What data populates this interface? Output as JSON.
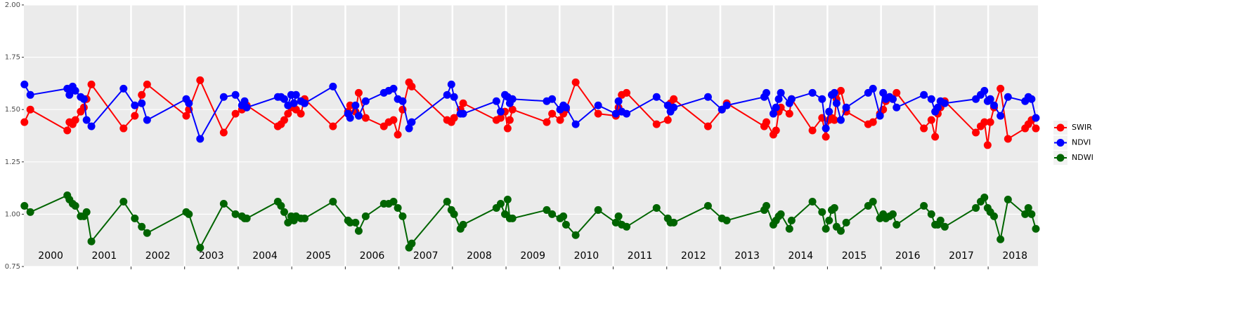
{
  "chart_data": {
    "type": "line",
    "x": [
      2000.01,
      2000.12,
      2000.81,
      2000.85,
      2000.91,
      2000.96,
      2001.06,
      2001.12,
      2001.17,
      2001.26,
      2001.86,
      2002.07,
      2002.2,
      2002.3,
      2003.03,
      2003.08,
      2003.29,
      2003.73,
      2003.95,
      2004.07,
      2004.12,
      2004.16,
      2004.74,
      2004.8,
      2004.86,
      2004.93,
      2004.99,
      2005.04,
      2005.08,
      2005.17,
      2005.24,
      2005.77,
      2006.05,
      2006.09,
      2006.19,
      2006.25,
      2006.38,
      2006.72,
      2006.81,
      2006.9,
      2006.98,
      2007.07,
      2007.19,
      2007.24,
      2007.9,
      2007.98,
      2008.03,
      2008.15,
      2008.2,
      2008.82,
      2008.9,
      2008.98,
      2009.03,
      2009.07,
      2009.12,
      2009.76,
      2009.86,
      2010.01,
      2010.07,
      2010.12,
      2010.3,
      2010.72,
      2011.05,
      2011.1,
      2011.16,
      2011.25,
      2011.81,
      2012.02,
      2012.07,
      2012.13,
      2012.77,
      2013.03,
      2013.12,
      2013.82,
      2013.86,
      2013.99,
      2014.04,
      2014.09,
      2014.13,
      2014.29,
      2014.33,
      2014.72,
      2014.9,
      2014.97,
      2015.03,
      2015.08,
      2015.13,
      2015.17,
      2015.25,
      2015.35,
      2015.76,
      2015.85,
      2015.98,
      2016.04,
      2016.09,
      2016.16,
      2016.22,
      2016.29,
      2016.8,
      2016.94,
      2017.01,
      2017.06,
      2017.11,
      2017.19,
      2017.77,
      2017.86,
      2017.93,
      2017.99,
      2018.04,
      2018.11,
      2018.23,
      2018.37,
      2018.69,
      2018.75,
      2018.81,
      2018.89
    ],
    "series": [
      {
        "name": "SWIR",
        "color": "#ff0000",
        "values": [
          1.44,
          1.5,
          1.4,
          1.44,
          1.43,
          1.45,
          1.49,
          1.51,
          1.55,
          1.62,
          1.41,
          1.47,
          1.57,
          1.62,
          1.47,
          1.5,
          1.64,
          1.39,
          1.48,
          1.5,
          1.53,
          1.52,
          1.42,
          1.43,
          1.45,
          1.48,
          1.51,
          1.53,
          1.5,
          1.48,
          1.55,
          1.42,
          1.49,
          1.52,
          1.49,
          1.58,
          1.46,
          1.42,
          1.44,
          1.45,
          1.38,
          1.5,
          1.63,
          1.61,
          1.45,
          1.44,
          1.46,
          1.5,
          1.53,
          1.45,
          1.46,
          1.49,
          1.41,
          1.45,
          1.5,
          1.44,
          1.48,
          1.45,
          1.48,
          1.5,
          1.63,
          1.48,
          1.47,
          1.51,
          1.57,
          1.58,
          1.43,
          1.45,
          1.53,
          1.55,
          1.42,
          1.5,
          1.53,
          1.42,
          1.44,
          1.38,
          1.4,
          1.49,
          1.51,
          1.48,
          1.55,
          1.4,
          1.46,
          1.37,
          1.45,
          1.46,
          1.45,
          1.55,
          1.59,
          1.49,
          1.43,
          1.44,
          1.48,
          1.5,
          1.54,
          1.56,
          1.55,
          1.58,
          1.41,
          1.45,
          1.37,
          1.48,
          1.51,
          1.54,
          1.39,
          1.42,
          1.44,
          1.33,
          1.44,
          1.51,
          1.6,
          1.36,
          1.41,
          1.43,
          1.45,
          1.41
        ]
      },
      {
        "name": "NDVI",
        "color": "#0000ff",
        "values": [
          1.62,
          1.57,
          1.6,
          1.57,
          1.61,
          1.59,
          1.56,
          1.55,
          1.45,
          1.42,
          1.6,
          1.52,
          1.53,
          1.45,
          1.55,
          1.53,
          1.36,
          1.56,
          1.57,
          1.52,
          1.54,
          1.51,
          1.56,
          1.56,
          1.55,
          1.52,
          1.57,
          1.53,
          1.57,
          1.54,
          1.53,
          1.61,
          1.48,
          1.46,
          1.52,
          1.47,
          1.54,
          1.58,
          1.59,
          1.6,
          1.55,
          1.54,
          1.41,
          1.44,
          1.57,
          1.62,
          1.56,
          1.48,
          1.48,
          1.54,
          1.49,
          1.57,
          1.56,
          1.53,
          1.55,
          1.54,
          1.55,
          1.5,
          1.52,
          1.51,
          1.43,
          1.52,
          1.48,
          1.54,
          1.49,
          1.48,
          1.56,
          1.52,
          1.49,
          1.51,
          1.56,
          1.5,
          1.52,
          1.56,
          1.58,
          1.48,
          1.51,
          1.55,
          1.58,
          1.53,
          1.55,
          1.58,
          1.55,
          1.41,
          1.49,
          1.57,
          1.58,
          1.53,
          1.45,
          1.51,
          1.58,
          1.6,
          1.47,
          1.58,
          1.55,
          1.56,
          1.55,
          1.51,
          1.57,
          1.55,
          1.49,
          1.51,
          1.54,
          1.53,
          1.55,
          1.57,
          1.59,
          1.54,
          1.55,
          1.52,
          1.47,
          1.56,
          1.54,
          1.56,
          1.55,
          1.46
        ]
      },
      {
        "name": "NDWI",
        "color": "#006400",
        "values": [
          1.04,
          1.01,
          1.09,
          1.07,
          1.05,
          1.04,
          0.99,
          0.99,
          1.01,
          0.87,
          1.06,
          0.98,
          0.94,
          0.91,
          1.01,
          1.0,
          0.84,
          1.05,
          1.0,
          0.99,
          0.98,
          0.98,
          1.06,
          1.04,
          1.01,
          0.96,
          0.99,
          0.97,
          0.99,
          0.98,
          0.98,
          1.06,
          0.97,
          0.96,
          0.96,
          0.92,
          0.99,
          1.05,
          1.05,
          1.06,
          1.03,
          0.99,
          0.84,
          0.86,
          1.06,
          1.02,
          1.0,
          0.93,
          0.95,
          1.03,
          1.05,
          1.0,
          1.07,
          0.98,
          0.98,
          1.02,
          1.0,
          0.98,
          0.99,
          0.95,
          0.9,
          1.02,
          0.96,
          0.99,
          0.95,
          0.94,
          1.03,
          0.98,
          0.96,
          0.96,
          1.04,
          0.98,
          0.97,
          1.02,
          1.04,
          0.95,
          0.97,
          0.99,
          1.0,
          0.93,
          0.97,
          1.06,
          1.01,
          0.93,
          0.97,
          1.02,
          1.03,
          0.94,
          0.92,
          0.96,
          1.04,
          1.06,
          0.98,
          1.0,
          0.98,
          0.99,
          1.0,
          0.95,
          1.04,
          1.0,
          0.95,
          0.95,
          0.97,
          0.94,
          1.03,
          1.06,
          1.08,
          1.03,
          1.01,
          0.99,
          0.88,
          1.07,
          1.0,
          1.03,
          1.0,
          0.93
        ]
      }
    ],
    "xlim": [
      2000,
      2018.93
    ],
    "xticks": [
      2001,
      2002,
      2003,
      2004,
      2005,
      2006,
      2007,
      2008,
      2009,
      2010,
      2011,
      2012,
      2013,
      2014,
      2015,
      2016,
      2017,
      2018
    ],
    "ylim": [
      0.75,
      2.0
    ],
    "yticks": [
      {
        "value": 0.75,
        "label": "0.75"
      },
      {
        "value": 1.0,
        "label": "1.00"
      },
      {
        "value": 1.25,
        "label": "1.25"
      },
      {
        "value": 1.5,
        "label": "1.50"
      },
      {
        "value": 1.75,
        "label": "1.75"
      },
      {
        "value": 2.0,
        "label": "2.00"
      }
    ],
    "grid": true,
    "legend": "right",
    "annotations": [
      {
        "x": 2000.5,
        "y": 0.8,
        "label": "2000"
      },
      {
        "x": 2001.5,
        "y": 0.8,
        "label": "2001"
      },
      {
        "x": 2002.5,
        "y": 0.8,
        "label": "2002"
      },
      {
        "x": 2003.5,
        "y": 0.8,
        "label": "2003"
      },
      {
        "x": 2004.5,
        "y": 0.8,
        "label": "2004"
      },
      {
        "x": 2005.5,
        "y": 0.8,
        "label": "2005"
      },
      {
        "x": 2006.5,
        "y": 0.8,
        "label": "2006"
      },
      {
        "x": 2007.5,
        "y": 0.8,
        "label": "2007"
      },
      {
        "x": 2008.5,
        "y": 0.8,
        "label": "2008"
      },
      {
        "x": 2009.5,
        "y": 0.8,
        "label": "2009"
      },
      {
        "x": 2010.5,
        "y": 0.8,
        "label": "2010"
      },
      {
        "x": 2011.5,
        "y": 0.8,
        "label": "2011"
      },
      {
        "x": 2012.5,
        "y": 0.8,
        "label": "2012"
      },
      {
        "x": 2013.5,
        "y": 0.8,
        "label": "2013"
      },
      {
        "x": 2014.5,
        "y": 0.8,
        "label": "2014"
      },
      {
        "x": 2015.5,
        "y": 0.8,
        "label": "2015"
      },
      {
        "x": 2016.5,
        "y": 0.8,
        "label": "2016"
      },
      {
        "x": 2017.5,
        "y": 0.8,
        "label": "2017"
      },
      {
        "x": 2018.5,
        "y": 0.8,
        "label": "2018"
      }
    ]
  }
}
